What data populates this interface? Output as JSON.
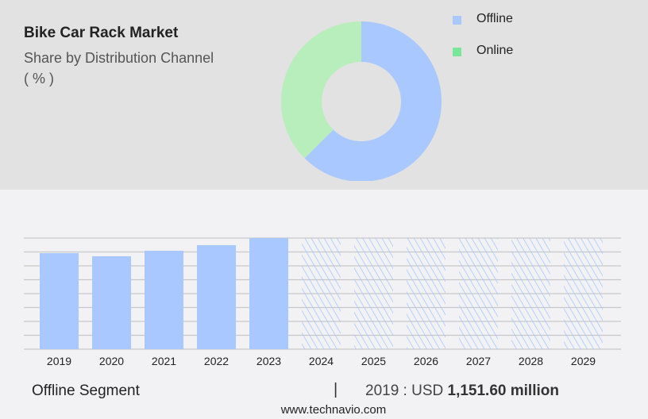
{
  "title": "Bike Car Rack Market",
  "subtitle": "Share by Distribution Channel",
  "unit": "( % )",
  "footer": {
    "segment": "Offline Segment",
    "separator": "|",
    "year_label": "2019 : USD ",
    "value": "1,151.60 million",
    "site": "www.technavio.com"
  },
  "chart_data": [
    {
      "type": "pie",
      "donut": true,
      "series": [
        {
          "name": "Offline",
          "value": 62.5,
          "color": "#a8c8ff"
        },
        {
          "name": "Online",
          "value": 37.5,
          "color": "#b8eebb"
        }
      ],
      "legend": {
        "position": "right",
        "items": [
          {
            "label": "Offline",
            "color": "#a8c8ff"
          },
          {
            "label": "Online",
            "color": "#7ae699"
          }
        ]
      }
    },
    {
      "type": "bar",
      "categories": [
        "2019",
        "2020",
        "2021",
        "2022",
        "2023",
        "2024",
        "2025",
        "2026",
        "2027",
        "2028",
        "2029"
      ],
      "values": [
        1151.6,
        1113.5,
        1180,
        1247,
        1332,
        null,
        null,
        null,
        null,
        null,
        null
      ],
      "forecast": [
        "2024",
        "2025",
        "2026",
        "2027",
        "2028",
        "2029"
      ],
      "ylim": [
        0,
        1332
      ],
      "grid": true,
      "color": "#a8c8ff"
    }
  ]
}
